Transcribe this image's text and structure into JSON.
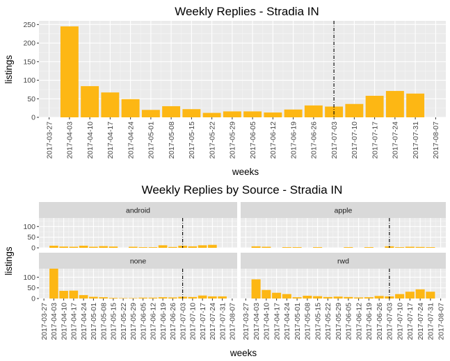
{
  "chart_data": [
    {
      "type": "bar",
      "title": "Weekly Replies - Stradia IN",
      "xlabel": "weeks",
      "ylabel": "listings",
      "ylim": [
        0,
        260
      ],
      "yticks": [
        0,
        50,
        100,
        150,
        200,
        250
      ],
      "x_tick_labels": [
        "2017-03-27",
        "2017-04-03",
        "2017-04-10",
        "2017-04-17",
        "2017-04-24",
        "2017-05-01",
        "2017-05-08",
        "2017-05-15",
        "2017-05-22",
        "2017-05-29",
        "2017-06-05",
        "2017-06-12",
        "2017-06-19",
        "2017-06-26",
        "2017-07-03",
        "2017-07-10",
        "2017-07-17",
        "2017-07-24",
        "2017-07-31",
        "2017-08-07"
      ],
      "categories": [
        "2017-04-03",
        "2017-04-10",
        "2017-04-17",
        "2017-04-24",
        "2017-05-01",
        "2017-05-08",
        "2017-05-15",
        "2017-05-22",
        "2017-05-29",
        "2017-06-05",
        "2017-06-12",
        "2017-06-19",
        "2017-06-26",
        "2017-07-03",
        "2017-07-10",
        "2017-07-17",
        "2017-07-24",
        "2017-07-31"
      ],
      "values": [
        245,
        84,
        67,
        49,
        20,
        30,
        22,
        12,
        16,
        16,
        13,
        21,
        32,
        29,
        36,
        58,
        71,
        64
      ],
      "vline": "2017-07-03",
      "bar_color": "#FDB714",
      "grid": true
    },
    {
      "type": "bar",
      "title": "Weekly Replies by Source - Stradia IN",
      "xlabel": "weeks",
      "ylabel": "listings",
      "ylim": [
        0,
        140
      ],
      "yticks": [
        0,
        50,
        100
      ],
      "x_tick_labels": [
        "2017-03-27",
        "2017-04-03",
        "2017-04-10",
        "2017-04-17",
        "2017-04-24",
        "2017-05-01",
        "2017-05-08",
        "2017-05-15",
        "2017-05-22",
        "2017-05-29",
        "2017-06-05",
        "2017-06-12",
        "2017-06-19",
        "2017-06-26",
        "2017-07-03",
        "2017-07-10",
        "2017-07-17",
        "2017-07-24",
        "2017-07-31",
        "2017-08-07"
      ],
      "categories": [
        "2017-04-03",
        "2017-04-10",
        "2017-04-17",
        "2017-04-24",
        "2017-05-01",
        "2017-05-08",
        "2017-05-15",
        "2017-05-22",
        "2017-05-29",
        "2017-06-05",
        "2017-06-12",
        "2017-06-19",
        "2017-06-26",
        "2017-07-03",
        "2017-07-10",
        "2017-07-17",
        "2017-07-24",
        "2017-07-31"
      ],
      "vline": "2017-07-03",
      "bar_color": "#FDB714",
      "series": [
        {
          "name": "android",
          "values": [
            10,
            6,
            5,
            10,
            5,
            8,
            6,
            0,
            5,
            3,
            3,
            12,
            4,
            10,
            7,
            12,
            14,
            0
          ]
        },
        {
          "name": "apple",
          "values": [
            7,
            5,
            0,
            3,
            3,
            0,
            3,
            0,
            0,
            3,
            0,
            3,
            0,
            7,
            3,
            5,
            4,
            3
          ]
        },
        {
          "name": "none",
          "values": [
            140,
            36,
            37,
            16,
            8,
            6,
            3,
            2,
            2,
            4,
            4,
            6,
            5,
            8,
            7,
            14,
            10,
            10
          ]
        },
        {
          "name": "rwd",
          "values": [
            90,
            40,
            27,
            21,
            6,
            13,
            11,
            7,
            9,
            7,
            5,
            6,
            12,
            10,
            21,
            32,
            43,
            32
          ]
        }
      ]
    }
  ]
}
